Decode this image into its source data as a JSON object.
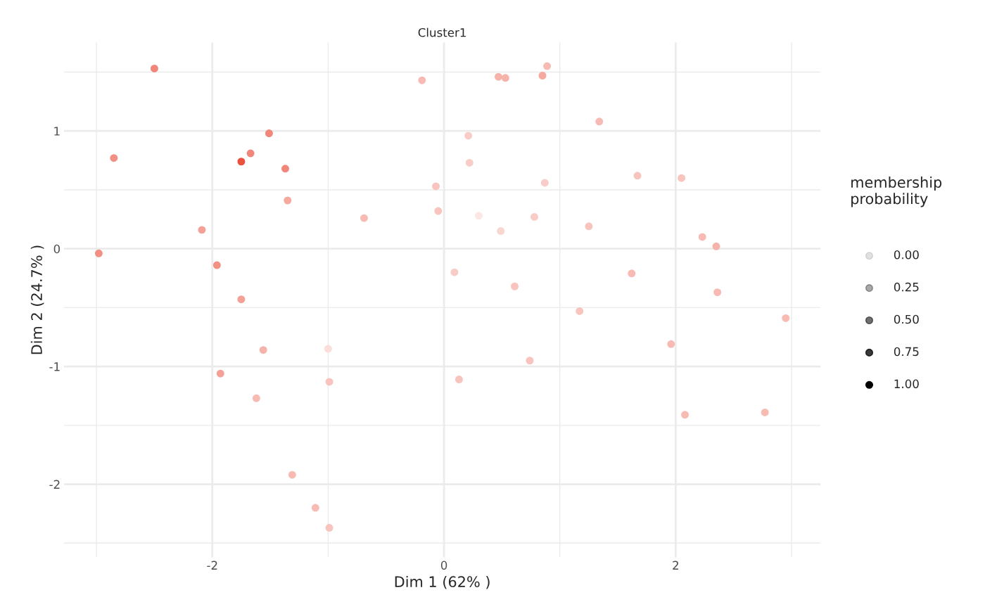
{
  "chart_data": {
    "type": "scatter",
    "title": "Cluster1",
    "xlabel": "Dim 1 (62% )",
    "ylabel": "Dim 2 (24.7% )",
    "annotations": [
      "membership\nprobability",
      "0.00",
      "0.25",
      "0.50",
      "0.75",
      "1.00"
    ],
    "x": [
      -2.5,
      -2.85,
      -1.51,
      -1.67,
      -1.75,
      -1.37,
      -1.35,
      -2.09,
      -2.98,
      -1.96,
      -1.75,
      -1.56,
      -1.93,
      -1.62,
      -1.31,
      -1.11,
      -0.99,
      -1.0,
      -0.99,
      -0.69,
      -0.19,
      -0.07,
      -0.05,
      0.21,
      0.22,
      0.3,
      0.47,
      0.53,
      0.85,
      0.89,
      1.34,
      0.87,
      0.49,
      0.78,
      1.25,
      0.09,
      0.61,
      1.67,
      2.05,
      2.23,
      2.35,
      1.62,
      2.36,
      1.17,
      2.95,
      1.96,
      0.74,
      0.13,
      2.08,
      2.77
    ],
    "series": [
      {
        "values": [
          1.53,
          0.77,
          0.98,
          0.81,
          0.74,
          0.68,
          0.41,
          0.16,
          -0.04,
          -0.14,
          -0.43,
          -0.86,
          -1.06,
          -1.27,
          -1.92,
          -2.2,
          -2.37,
          -0.85,
          -1.13,
          0.26,
          1.43,
          0.53,
          0.32,
          0.96,
          0.73,
          0.28,
          1.46,
          1.45,
          1.47,
          1.55,
          1.08,
          0.56,
          0.15,
          0.27,
          0.19,
          -0.2,
          -0.32,
          0.62,
          0.6,
          0.1,
          0.02,
          -0.21,
          -0.37,
          -0.53,
          -0.59,
          -0.81,
          -0.95,
          -1.11,
          -1.41,
          -1.39
        ],
        "colors": [
          "#f0877a",
          "#f29083",
          "#f0877a",
          "#f0877a",
          "#ea533f",
          "#f0877a",
          "#f5aaa0",
          "#f4a197",
          "#f29083",
          "#f29083",
          "#f4a197",
          "#f6b3aa",
          "#f4a197",
          "#f7bbb4",
          "#f7bbb4",
          "#f7bbb4",
          "#f8c4be",
          "#fbdedb",
          "#f8c4be",
          "#f7bbb4",
          "#f7bbb4",
          "#f8c4be",
          "#f8c4be",
          "#f9cdc7",
          "#f9cdc7",
          "#fce7e4",
          "#f6b3aa",
          "#f6b3aa",
          "#f5aaa0",
          "#f7bbb4",
          "#f7bbb4",
          "#f9cdc7",
          "#fad6d1",
          "#f9cdc7",
          "#f8c4be",
          "#f9cdc7",
          "#f8c4be",
          "#f8c4be",
          "#f8c4be",
          "#f7bbb4",
          "#f6b3aa",
          "#f7bbb4",
          "#f7bbb4",
          "#f8c4be",
          "#f7bbb4",
          "#f7bbb4",
          "#f8c4be",
          "#f8c4be",
          "#f7bbb4",
          "#f7bbb4"
        ]
      }
    ],
    "xlim": [
      -3.28,
      3.25
    ],
    "xticks": [
      {
        "value": -3,
        "label": null
      },
      -2,
      {
        "value": -1,
        "label": null
      },
      0,
      {
        "value": 1,
        "label": null
      },
      2,
      {
        "value": 3,
        "label": null
      }
    ],
    "ylim": [
      -2.62,
      1.75
    ],
    "yticks": [
      {
        "value": -2.5,
        "label": null
      },
      -2,
      {
        "value": -1.5,
        "label": null
      },
      -1,
      {
        "value": -0.5,
        "label": null
      },
      0,
      {
        "value": 0.5,
        "label": null
      },
      1,
      {
        "value": 1.5,
        "label": null
      }
    ],
    "grid": true
  }
}
